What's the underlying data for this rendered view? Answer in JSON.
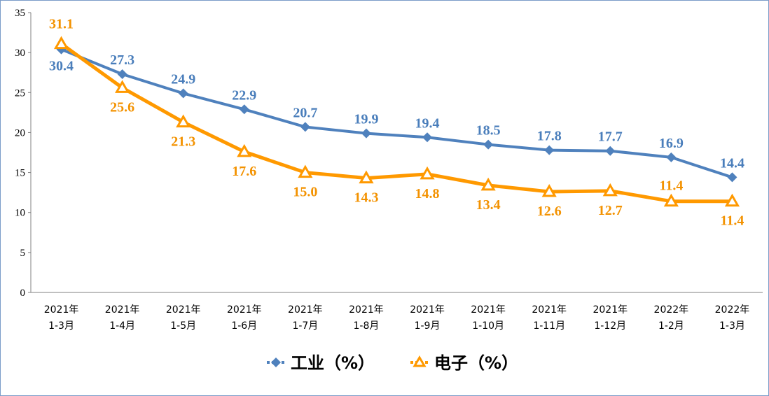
{
  "chart_data": {
    "type": "line",
    "title": "",
    "xlabel": "",
    "ylabel": "",
    "ylim": [
      0,
      35
    ],
    "yticks": [
      0,
      5,
      10,
      15,
      20,
      25,
      30,
      35
    ],
    "grid": false,
    "legend_position": "bottom",
    "categories": [
      [
        "2021年",
        "1-3月"
      ],
      [
        "2021年",
        "1-4月"
      ],
      [
        "2021年",
        "1-5月"
      ],
      [
        "2021年",
        "1-6月"
      ],
      [
        "2021年",
        "1-7月"
      ],
      [
        "2021年",
        "1-8月"
      ],
      [
        "2021年",
        "1-9月"
      ],
      [
        "2021年",
        "1-10月"
      ],
      [
        "2021年",
        "1-11月"
      ],
      [
        "2021年",
        "1-12月"
      ],
      [
        "2022年",
        "1-2月"
      ],
      [
        "2022年",
        "1-3月"
      ]
    ],
    "series": [
      {
        "name": "工业（%）",
        "color": "#4f81bd",
        "label_color": "#4a7ebb",
        "marker": "diamond",
        "values": [
          30.4,
          27.3,
          24.9,
          22.9,
          20.7,
          19.9,
          19.4,
          18.5,
          17.8,
          17.7,
          16.9,
          14.4
        ]
      },
      {
        "name": "电子（%）",
        "color": "#ff9900",
        "label_color": "#f39200",
        "marker": "triangle",
        "values": [
          31.1,
          25.6,
          21.3,
          17.6,
          15.0,
          14.3,
          14.8,
          13.4,
          12.6,
          12.7,
          11.4,
          11.4
        ]
      }
    ]
  }
}
